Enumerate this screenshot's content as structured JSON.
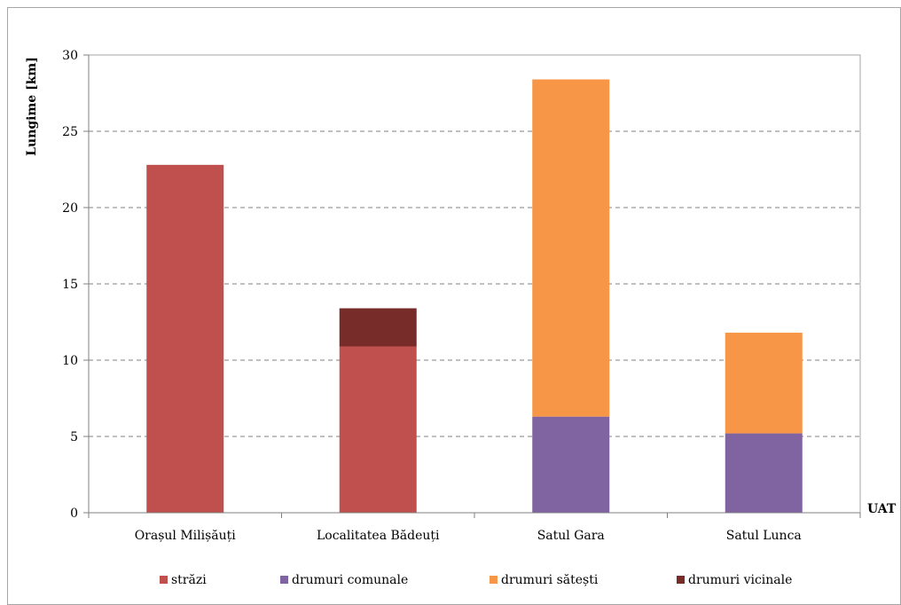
{
  "chart_data": {
    "type": "bar",
    "stacked": true,
    "title": "",
    "xlabel": "UAT",
    "ylabel": "Lungime [km]",
    "ylim": [
      0,
      30
    ],
    "yticks": [
      "0",
      "5",
      "10",
      "15",
      "20",
      "25",
      "30"
    ],
    "grid": "horizontal dashed",
    "legend_position": "bottom",
    "categories": [
      "Orașul Milișăuți",
      "Localitatea Bădeuți",
      "Satul Gara",
      "Satul Lunca"
    ],
    "series": [
      {
        "name": "străzi",
        "color": "#c0504d",
        "values": [
          22.8,
          10.9,
          0,
          0
        ]
      },
      {
        "name": "drumuri comunale",
        "color": "#8064a2",
        "values": [
          0,
          0,
          6.3,
          5.2
        ]
      },
      {
        "name": "drumuri sătești",
        "color": "#f79646",
        "values": [
          0,
          0,
          22.1,
          6.6
        ]
      },
      {
        "name": "drumuri vicinale",
        "color": "#772c2a",
        "values": [
          0,
          2.5,
          0,
          0
        ]
      }
    ]
  }
}
